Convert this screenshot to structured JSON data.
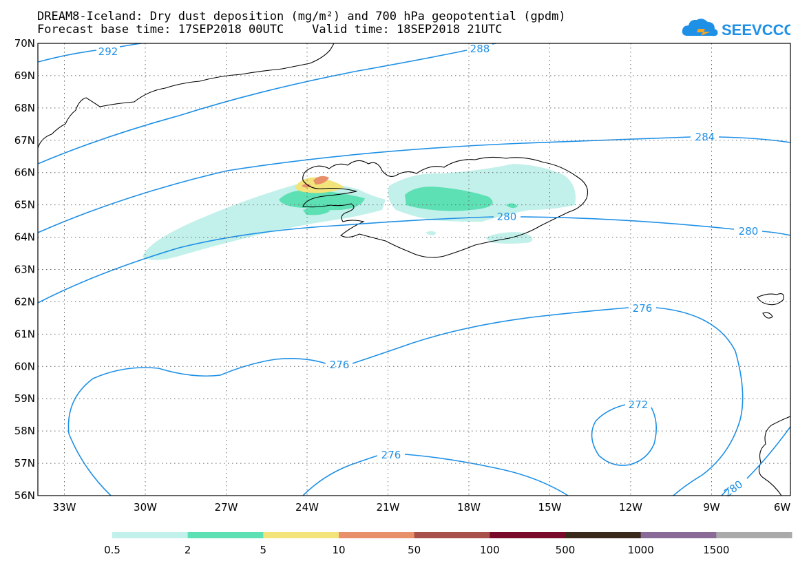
{
  "header": {
    "title_line1": "DREAM8-Iceland: Dry dust deposition (mg/m²) and 700 hPa geopotential (gpdm)",
    "title_line2": "Forecast base time: 17SEP2018 00UTC    Valid time: 18SEP2018 21UTC"
  },
  "logo": {
    "text": "SEEVCCC",
    "icon": "cloud-logo-icon",
    "color": "#1e90e6"
  },
  "map": {
    "lat_labels": [
      "70N",
      "69N",
      "68N",
      "67N",
      "66N",
      "65N",
      "64N",
      "63N",
      "62N",
      "61N",
      "60N",
      "59N",
      "58N",
      "57N",
      "56N"
    ],
    "lon_labels": [
      "33W",
      "30W",
      "27W",
      "24W",
      "21W",
      "18W",
      "15W",
      "12W",
      "9W",
      "6W"
    ],
    "contour_labels": {
      "c292": "292",
      "c288": "288",
      "c284": "284",
      "c280a": "280",
      "c280b": "280",
      "c280c": "280",
      "c276a": "276",
      "c276b": "276",
      "c276c": "276",
      "c272": "272"
    },
    "contour_color": "#1e90e6"
  },
  "legend": {
    "labels": [
      "0.5",
      "2",
      "5",
      "10",
      "50",
      "100",
      "500",
      "1000",
      "1500"
    ],
    "colors": [
      "#c2f0ea",
      "#5ce0b4",
      "#f2e47a",
      "#e8906a",
      "#a8504a",
      "#7a0a2c",
      "#3a2a1c",
      "#8a6a96",
      "#aaaaaa"
    ]
  }
}
